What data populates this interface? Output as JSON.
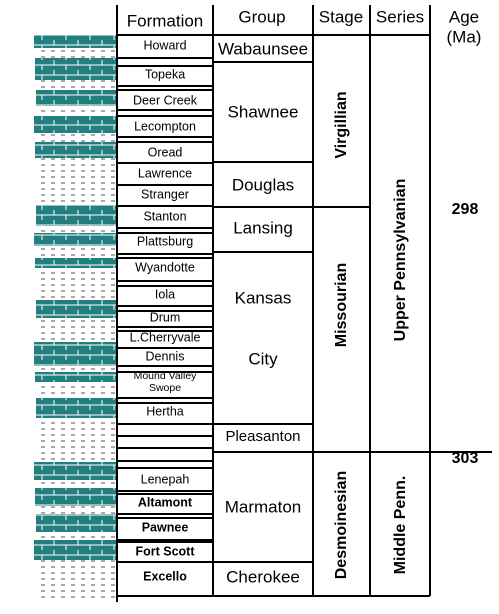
{
  "header": {
    "formation": "Formation",
    "group": "Group",
    "stage": "Stage",
    "series": "Series",
    "age": [
      "Age",
      "(Ma)"
    ]
  },
  "formations": [
    "Howard",
    "Topeka",
    "Deer Creek",
    "Lecompton",
    "Oread",
    "Lawrence",
    "Stranger",
    "Stanton",
    "Plattsburg",
    "Wyandotte",
    "Iola",
    "Drum",
    "L.Cherryvale",
    "Dennis",
    "Mound Valley",
    "Swope",
    "Hertha",
    "Lenepah",
    "Altamont",
    "Pawnee",
    "Fort Scott",
    "Excello"
  ],
  "groups": [
    "Wabaunsee",
    "Shawnee",
    "Douglas",
    "Lansing",
    "Kansas",
    "City",
    "Pleasanton",
    "Marmaton",
    "Cherokee"
  ],
  "stages": [
    "Virgillian",
    "Missourian",
    "Desmoinesian"
  ],
  "series": [
    "Upper Pennsylvanian",
    "Middle Penn."
  ],
  "ages": [
    "298",
    "303"
  ]
}
